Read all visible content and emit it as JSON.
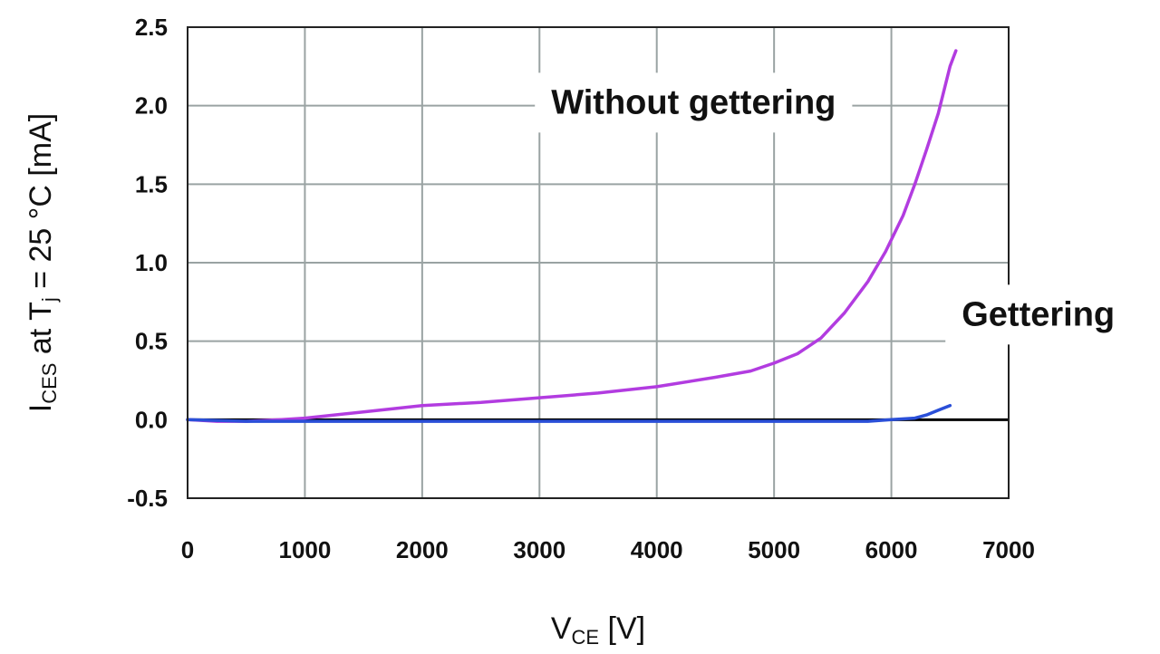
{
  "chart_data": {
    "type": "line",
    "title": "",
    "xlabel": {
      "main": "V",
      "sub": "CE",
      "unit": " [V]"
    },
    "ylabel": {
      "part1": "I",
      "sub1": "CES",
      "part2": " at T",
      "sub2": "j",
      "part3": " = 25 °C [mA]"
    },
    "xlim": [
      0,
      7000
    ],
    "ylim": [
      -0.5,
      2.5
    ],
    "xticks": [
      0,
      1000,
      2000,
      3000,
      4000,
      5000,
      6000,
      7000
    ],
    "xtick_labels": [
      "0",
      "1000",
      "2000",
      "3000",
      "4000",
      "5000",
      "6000",
      "7000"
    ],
    "yticks": [
      -0.5,
      0.0,
      0.5,
      1.0,
      1.5,
      2.0,
      2.5
    ],
    "ytick_labels": [
      "-0.5",
      "0.0",
      "0.5",
      "1.0",
      "1.5",
      "2.0",
      "2.5"
    ],
    "grid": true,
    "series": [
      {
        "name": "Without gettering",
        "color": "#b23ce0",
        "x": [
          0,
          250,
          500,
          800,
          1000,
          1500,
          2000,
          2500,
          3000,
          3500,
          4000,
          4500,
          4800,
          5000,
          5200,
          5400,
          5600,
          5800,
          5950,
          6100,
          6200,
          6300,
          6400,
          6500,
          6550
        ],
        "y": [
          0.0,
          -0.01,
          -0.01,
          0.0,
          0.01,
          0.05,
          0.09,
          0.11,
          0.14,
          0.17,
          0.21,
          0.27,
          0.31,
          0.36,
          0.42,
          0.52,
          0.68,
          0.88,
          1.07,
          1.3,
          1.5,
          1.72,
          1.95,
          2.25,
          2.35
        ]
      },
      {
        "name": "Gettering",
        "color": "#2a4fd8",
        "x": [
          0,
          500,
          1000,
          2000,
          3000,
          4000,
          5000,
          5800,
          6000,
          6200,
          6300,
          6400,
          6500
        ],
        "y": [
          0.0,
          -0.01,
          -0.01,
          -0.01,
          -0.01,
          -0.01,
          -0.01,
          -0.01,
          0.0,
          0.01,
          0.03,
          0.06,
          0.09
        ]
      }
    ],
    "annotations": [
      {
        "text": "Without gettering",
        "x": 3100,
        "y": 1.95
      },
      {
        "text": "Gettering",
        "x": 6600,
        "y": 0.6
      }
    ]
  }
}
